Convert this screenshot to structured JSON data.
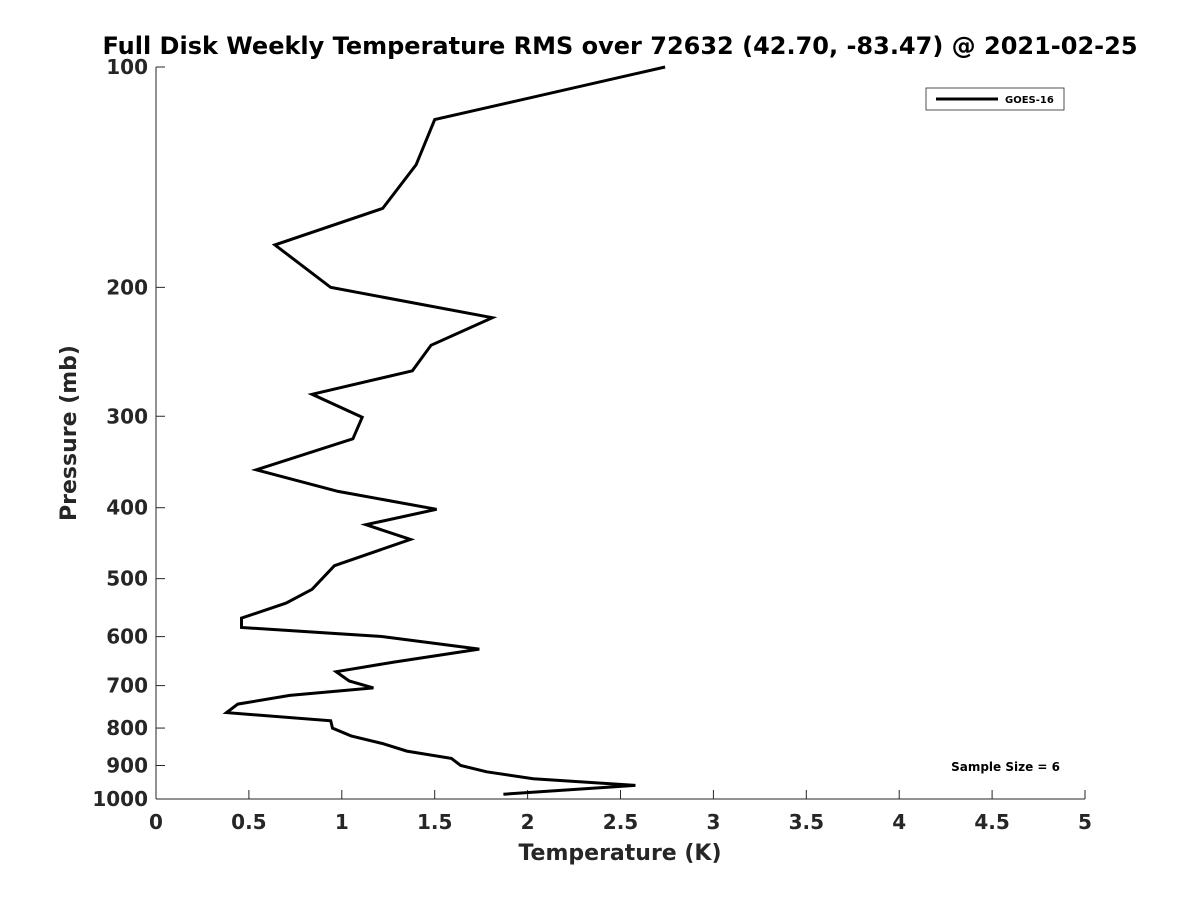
{
  "chart_data": {
    "type": "line",
    "title": "Full Disk Weekly Temperature RMS over 72632 (42.70, -83.47) @ 2021-02-25",
    "xlabel": "Temperature (K)",
    "ylabel": "Pressure (mb)",
    "xlim": [
      0,
      5
    ],
    "ylim": [
      100,
      1000
    ],
    "y_scale": "log",
    "y_reversed": true,
    "grid": false,
    "legend_placement": "top-right",
    "x_ticks": [
      "0",
      "0.5",
      "1",
      "1.5",
      "2",
      "2.5",
      "3",
      "3.5",
      "4",
      "4.5",
      "5"
    ],
    "x_tick_values": [
      0,
      0.5,
      1,
      1.5,
      2,
      2.5,
      3,
      3.5,
      4,
      4.5,
      5
    ],
    "y_ticks": [
      "100",
      "200",
      "300",
      "400",
      "500",
      "600",
      "700",
      "800",
      "900",
      "1000"
    ],
    "y_tick_values": [
      100,
      200,
      300,
      400,
      500,
      600,
      700,
      800,
      900,
      1000
    ],
    "annotation": "Sample Size = 6",
    "series": [
      {
        "name": "GOES-16",
        "color": "#000000",
        "points": [
          [
            2.74,
            100
          ],
          [
            1.5,
            118
          ],
          [
            1.4,
            136
          ],
          [
            1.22,
            156
          ],
          [
            0.64,
            175
          ],
          [
            0.94,
            200
          ],
          [
            1.81,
            220
          ],
          [
            1.48,
            240
          ],
          [
            1.38,
            260
          ],
          [
            0.84,
            280
          ],
          [
            1.11,
            301
          ],
          [
            1.06,
            322
          ],
          [
            0.54,
            355
          ],
          [
            0.98,
            380
          ],
          [
            1.51,
            402
          ],
          [
            1.13,
            422
          ],
          [
            1.37,
            442
          ],
          [
            0.96,
            480
          ],
          [
            0.84,
            517
          ],
          [
            0.7,
            540
          ],
          [
            0.46,
            566
          ],
          [
            0.46,
            583
          ],
          [
            1.22,
            600
          ],
          [
            1.74,
            624
          ],
          [
            1.28,
            650
          ],
          [
            0.97,
            670
          ],
          [
            1.04,
            690
          ],
          [
            1.17,
            705
          ],
          [
            0.72,
            722
          ],
          [
            0.44,
            742
          ],
          [
            0.38,
            762
          ],
          [
            0.94,
            782
          ],
          [
            0.95,
            800
          ],
          [
            1.05,
            820
          ],
          [
            1.22,
            840
          ],
          [
            1.35,
            860
          ],
          [
            1.59,
            880
          ],
          [
            1.64,
            900
          ],
          [
            1.78,
            918
          ],
          [
            2.03,
            938
          ],
          [
            2.58,
            958
          ],
          [
            1.87,
            985
          ]
        ]
      }
    ]
  }
}
